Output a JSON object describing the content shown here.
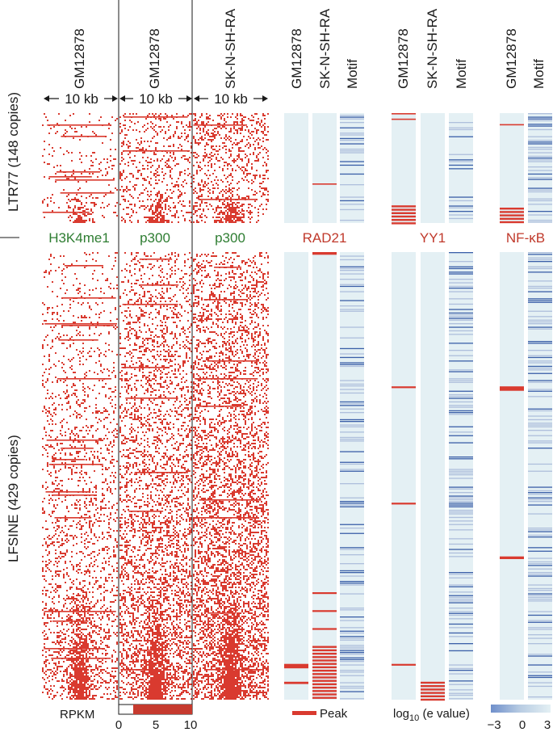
{
  "chart_data": {
    "type": "heatmap",
    "title": "",
    "row_groups": [
      {
        "name": "LTR77",
        "label": "LTR77 (148 copies)",
        "copies": 148
      },
      {
        "name": "LFSINE",
        "label": "LFSINE (429 copies)",
        "copies": 429
      }
    ],
    "signal_panels": [
      {
        "cell_line": "GM12878",
        "mark": "H3K4me1",
        "window": "10 kb"
      },
      {
        "cell_line": "GM12878",
        "mark": "p300",
        "window": "10 kb"
      },
      {
        "cell_line": "SK-N-SH-RA",
        "mark": "p300",
        "window": "10 kb"
      }
    ],
    "factor_groups": [
      {
        "factor": "RAD21",
        "columns": [
          "GM12878",
          "SK-N-SH-RA",
          "Motif"
        ]
      },
      {
        "factor": "YY1",
        "columns": [
          "GM12878",
          "SK-N-SH-RA",
          "Motif"
        ]
      },
      {
        "factor": "NF-κB",
        "columns": [
          "GM12878",
          "Motif"
        ]
      }
    ],
    "rpkm_scale": {
      "label": "RPKM",
      "min": 0,
      "max": 10,
      "ticks": [
        "0",
        "5",
        "10"
      ]
    },
    "peak_legend": "Peak",
    "evalue_scale": {
      "label": "log10 (e value)",
      "label_prefix": "log",
      "label_sub": "10",
      "label_suffix": " (e value)",
      "min": -3,
      "max": 3,
      "ticks": [
        "−3",
        "0",
        "3"
      ]
    }
  },
  "colors": {
    "signal": "#d93a2f",
    "peak": "#d93a2f",
    "track_bg": "#e4f0f4",
    "motif_strong": "#3b5fa8",
    "motif_light": "#aebfdc",
    "label_mark": "#2e7d32",
    "label_factor": "#c0392b"
  }
}
